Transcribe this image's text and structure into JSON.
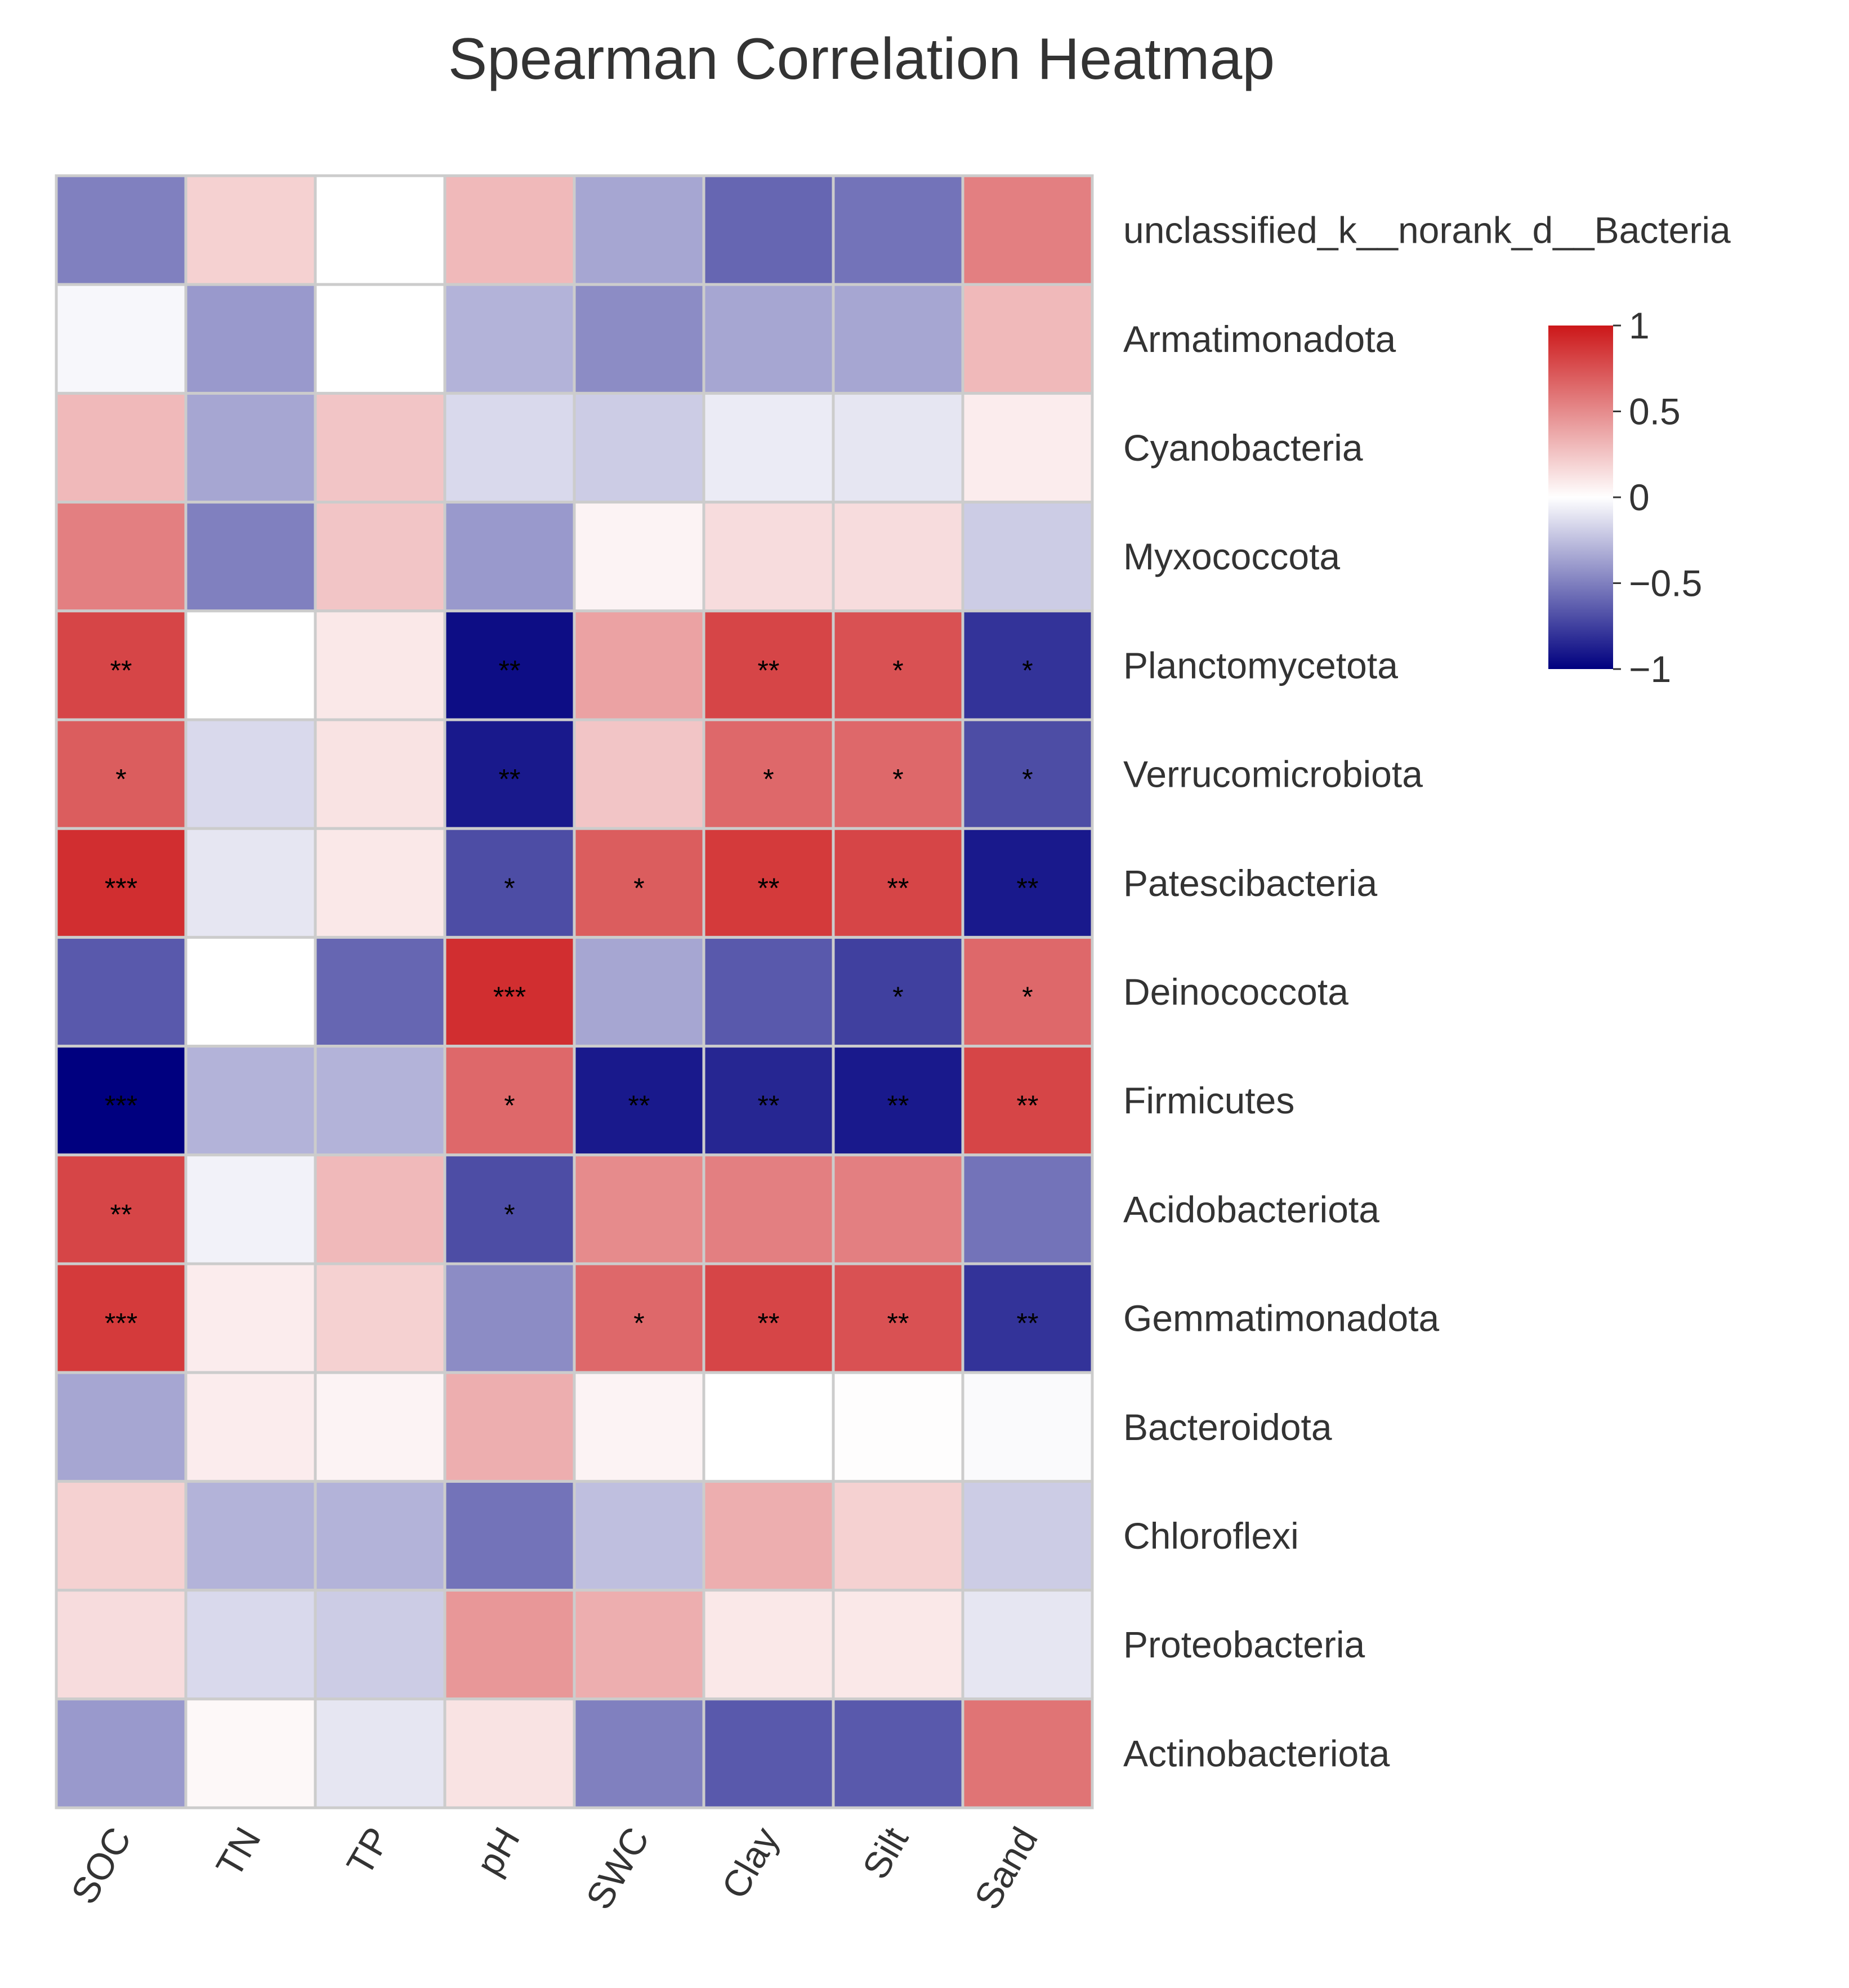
{
  "chart_data": {
    "type": "heatmap",
    "title": "Spearman Correlation Heatmap",
    "columns": [
      "SOC",
      "TN",
      "TP",
      "pH",
      "SWC",
      "Clay",
      "Silt",
      "Sand"
    ],
    "rows": [
      "unclassified_k__norank_d__Bacteria",
      "Armatimonadota",
      "Cyanobacteria",
      "Myxococcota",
      "Planctomycetota",
      "Verrucomicrobiota",
      "Patescibacteria",
      "Deinococcota",
      "Firmicutes",
      "Acidobacteriota",
      "Gemmatimonadota",
      "Bacteroidota",
      "Chloroflexi",
      "Proteobacteria",
      "Actinobacteriota"
    ],
    "values": [
      [
        -0.5,
        0.2,
        0.0,
        0.3,
        -0.35,
        -0.6,
        -0.55,
        0.55
      ],
      [
        -0.03,
        -0.4,
        0.0,
        -0.3,
        -0.45,
        -0.35,
        -0.35,
        0.3
      ],
      [
        0.3,
        -0.35,
        0.25,
        -0.15,
        -0.2,
        -0.08,
        -0.1,
        0.08
      ],
      [
        0.55,
        -0.5,
        0.25,
        -0.4,
        0.05,
        0.15,
        0.15,
        -0.2
      ],
      [
        0.8,
        0.0,
        0.1,
        -0.95,
        0.4,
        0.8,
        0.75,
        -0.8
      ],
      [
        0.7,
        -0.15,
        0.12,
        -0.9,
        0.25,
        0.65,
        0.65,
        -0.7
      ],
      [
        0.9,
        -0.1,
        0.1,
        -0.7,
        0.7,
        0.85,
        0.8,
        -0.9
      ],
      [
        -0.65,
        0.0,
        -0.6,
        0.9,
        -0.35,
        -0.65,
        -0.75,
        0.65
      ],
      [
        -1.0,
        -0.3,
        -0.3,
        0.65,
        -0.9,
        -0.85,
        -0.9,
        0.8
      ],
      [
        0.8,
        -0.05,
        0.3,
        -0.7,
        0.5,
        0.55,
        0.55,
        -0.55
      ],
      [
        0.85,
        0.08,
        0.2,
        -0.45,
        0.65,
        0.8,
        0.75,
        -0.8
      ],
      [
        -0.35,
        0.08,
        0.05,
        0.35,
        0.05,
        0.0,
        0.01,
        -0.02
      ],
      [
        0.2,
        -0.3,
        -0.3,
        -0.55,
        -0.25,
        0.35,
        0.2,
        -0.2
      ],
      [
        0.15,
        -0.15,
        -0.2,
        0.45,
        0.35,
        0.1,
        0.1,
        -0.1
      ],
      [
        -0.4,
        0.03,
        -0.1,
        0.12,
        -0.5,
        -0.65,
        -0.65,
        0.6
      ]
    ],
    "significance": [
      [
        "",
        "",
        "",
        "",
        "",
        "",
        "",
        ""
      ],
      [
        "",
        "",
        "",
        "",
        "",
        "",
        "",
        ""
      ],
      [
        "",
        "",
        "",
        "",
        "",
        "",
        "",
        ""
      ],
      [
        "",
        "",
        "",
        "",
        "",
        "",
        "",
        ""
      ],
      [
        "**",
        "",
        "",
        "**",
        "",
        "**",
        "*",
        "*"
      ],
      [
        "*",
        "",
        "",
        "**",
        "",
        "*",
        "*",
        "*"
      ],
      [
        "***",
        "",
        "",
        "*",
        "*",
        "**",
        "**",
        "**"
      ],
      [
        "",
        "",
        "",
        "***",
        "",
        "",
        "*",
        "*"
      ],
      [
        "***",
        "",
        "",
        "*",
        "**",
        "**",
        "**",
        "**"
      ],
      [
        "**",
        "",
        "",
        "*",
        "",
        "",
        "",
        ""
      ],
      [
        "***",
        "",
        "",
        "",
        "*",
        "**",
        "**",
        "**"
      ],
      [
        "",
        "",
        "",
        "",
        "",
        "",
        "",
        ""
      ],
      [
        "",
        "",
        "",
        "",
        "",
        "",
        "",
        ""
      ],
      [
        "",
        "",
        "",
        "",
        "",
        "",
        "",
        ""
      ],
      [
        "",
        "",
        "",
        "",
        "",
        "",
        "",
        ""
      ]
    ],
    "value_range": [
      -1,
      1
    ],
    "colorscale": {
      "low": "#00007f",
      "mid": "#ffffff",
      "high": "#cc1719"
    },
    "legend": {
      "placement": "right",
      "ticks": [
        {
          "value": 1,
          "label": "1"
        },
        {
          "value": 0.5,
          "label": "0.5"
        },
        {
          "value": 0,
          "label": "0"
        },
        {
          "value": -0.5,
          "label": "−0.5"
        },
        {
          "value": -1,
          "label": "−1"
        }
      ]
    },
    "grid": true,
    "grid_color": "#cccccc"
  }
}
